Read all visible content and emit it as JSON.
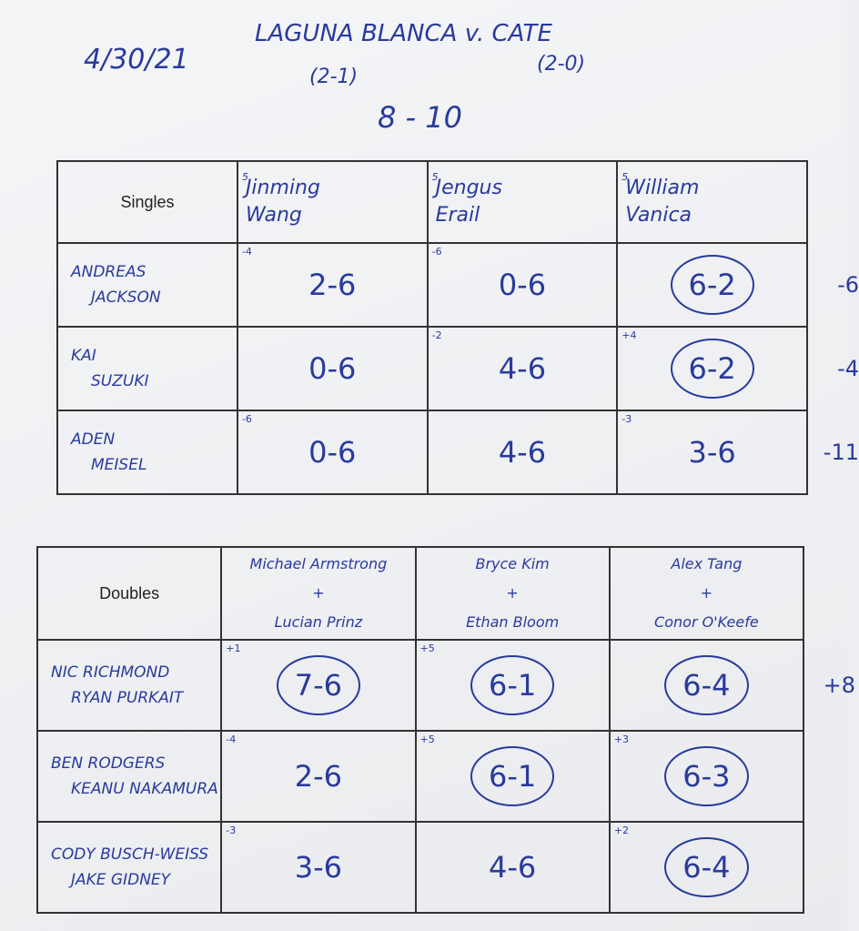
{
  "header": {
    "date": "4/30/21",
    "title": "LAGUNA BLANCA v. CATE",
    "home_record": "(2-1)",
    "away_record": "(2-0)",
    "match_score": "8 - 10"
  },
  "singles": {
    "label": "Singles",
    "opponents": [
      {
        "seed": "5",
        "line1": "Jinming",
        "line2": "Wang"
      },
      {
        "seed": "5",
        "line1": "Jengus",
        "line2": "Erail"
      },
      {
        "seed": "5",
        "line1": "William",
        "line2": "Vanica"
      }
    ],
    "rows": [
      {
        "line1": "ANDREAS",
        "line2": "JACKSON",
        "total": "-6",
        "cells": [
          {
            "note": "-4",
            "score": "2-6",
            "won": false
          },
          {
            "note": "-6",
            "score": "0-6",
            "won": false
          },
          {
            "note": "",
            "score": "6-2",
            "won": true
          }
        ]
      },
      {
        "line1": "KAI",
        "line2": "SUZUKI",
        "total": "-4",
        "cells": [
          {
            "note": "",
            "score": "0-6",
            "won": false
          },
          {
            "note": "-2",
            "score": "4-6",
            "won": false
          },
          {
            "note": "+4",
            "score": "6-2",
            "won": true
          }
        ]
      },
      {
        "line1": "ADEN",
        "line2": "MEISEL",
        "total": "-11",
        "cells": [
          {
            "note": "-6",
            "score": "0-6",
            "won": false
          },
          {
            "note": "",
            "score": "4-6",
            "won": false
          },
          {
            "note": "-3",
            "score": "3-6",
            "won": false
          }
        ]
      }
    ]
  },
  "doubles": {
    "label": "Doubles",
    "opponents": [
      {
        "line1": "Michael Armstrong",
        "plus": "+",
        "line2": "Lucian Prinz"
      },
      {
        "line1": "Bryce Kim",
        "plus": "+",
        "line2": "Ethan Bloom"
      },
      {
        "line1": "Alex Tang",
        "plus": "+",
        "line2": "Conor O'Keefe"
      }
    ],
    "rows": [
      {
        "line1": "NIC RICHMOND",
        "line2": "RYAN PURKAIT",
        "total": "+8",
        "cells": [
          {
            "note": "+1",
            "score": "7-6",
            "won": true
          },
          {
            "note": "+5",
            "score": "6-1",
            "won": true
          },
          {
            "note": "",
            "score": "6-4",
            "won": true
          }
        ]
      },
      {
        "line1": "BEN RODGERS",
        "line2": "KEANU NAKAMURA",
        "total": "",
        "cells": [
          {
            "note": "-4",
            "score": "2-6",
            "won": false
          },
          {
            "note": "+5",
            "score": "6-1",
            "won": true
          },
          {
            "note": "+3",
            "score": "6-3",
            "won": true
          }
        ]
      },
      {
        "line1": "CODY BUSCH-WEISS",
        "line2": "JAKE GIDNEY",
        "total": "",
        "cells": [
          {
            "note": "-3",
            "score": "3-6",
            "won": false
          },
          {
            "note": "",
            "score": "4-6",
            "won": false
          },
          {
            "note": "+2",
            "score": "6-4",
            "won": true
          }
        ]
      }
    ]
  }
}
